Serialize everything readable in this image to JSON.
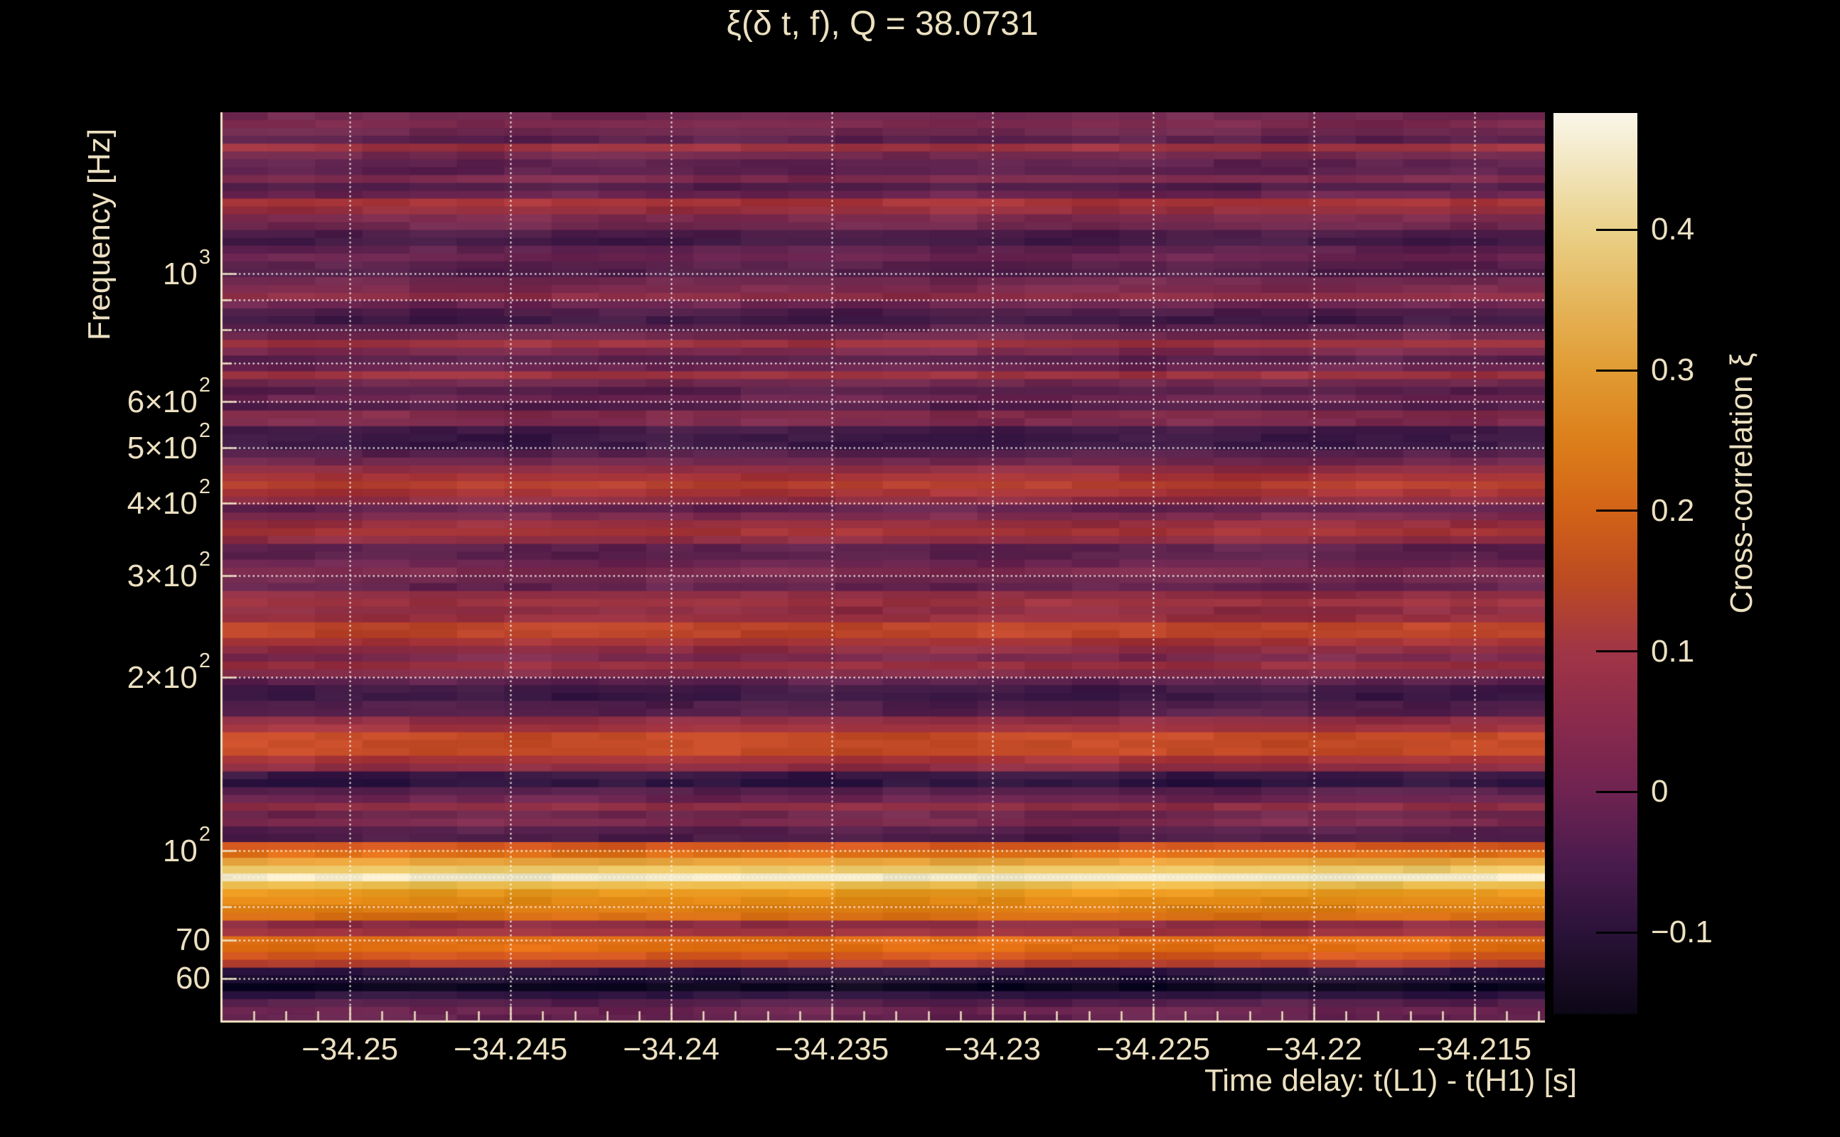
{
  "figure": {
    "background": "#000000",
    "text_color": "#ece0c1",
    "grid_color": "#fffaf0",
    "axis_color": "#ece0c1"
  },
  "title": {
    "text": "ξ(δ t, f), Q = 38.0731"
  },
  "x_axis": {
    "label": "Time delay: t(L1) - t(H1) [s]",
    "range": [
      -34.25403,
      -34.21281
    ],
    "major_ticks": [
      {
        "v": -34.25,
        "label": "−34.25"
      },
      {
        "v": -34.245,
        "label": "−34.245"
      },
      {
        "v": -34.24,
        "label": "−34.24"
      },
      {
        "v": -34.235,
        "label": "−34.235"
      },
      {
        "v": -34.23,
        "label": "−34.23"
      },
      {
        "v": -34.225,
        "label": "−34.225"
      },
      {
        "v": -34.22,
        "label": "−34.22"
      },
      {
        "v": -34.215,
        "label": "−34.215"
      }
    ],
    "minor_tick_step": 0.001,
    "minor_tick_start": -34.253,
    "minor_tick_count": 41
  },
  "y_axis": {
    "label": "Frequency [Hz]",
    "scale": "log",
    "range_hz": [
      50.36,
      1904
    ],
    "labeled_ticks": [
      {
        "v": 1000,
        "m": "10",
        "s": "3"
      },
      {
        "v": 600,
        "m": "6×10",
        "s": "2"
      },
      {
        "v": 500,
        "m": "5×10",
        "s": "2"
      },
      {
        "v": 400,
        "m": "4×10",
        "s": "2"
      },
      {
        "v": 300,
        "m": "3×10",
        "s": "2"
      },
      {
        "v": 200,
        "m": "2×10",
        "s": "2"
      },
      {
        "v": 100,
        "m": "10",
        "s": "2"
      },
      {
        "v": 70,
        "m": "70",
        "s": ""
      },
      {
        "v": 60,
        "m": "60",
        "s": ""
      }
    ],
    "gridline_values": [
      1000,
      900,
      800,
      700,
      600,
      500,
      400,
      300,
      200,
      100,
      90,
      80,
      70,
      60
    ]
  },
  "colorbar": {
    "label": "Cross-correlation ξ",
    "range": [
      -0.158,
      0.483
    ],
    "ticks": [
      {
        "v": 0.4,
        "label": "0.4"
      },
      {
        "v": 0.3,
        "label": "0.3"
      },
      {
        "v": 0.2,
        "label": "0.2"
      },
      {
        "v": 0.1,
        "label": "0.1"
      },
      {
        "v": 0.0,
        "label": "0"
      },
      {
        "v": -0.1,
        "label": "−0.1"
      }
    ],
    "stops": [
      {
        "v": 0.483,
        "c": "#faf5e9"
      },
      {
        "v": 0.45,
        "c": "#f3e8c4"
      },
      {
        "v": 0.4,
        "c": "#ead189"
      },
      {
        "v": 0.35,
        "c": "#e5b65c"
      },
      {
        "v": 0.3,
        "c": "#e19b33"
      },
      {
        "v": 0.25,
        "c": "#dc7f1b"
      },
      {
        "v": 0.2,
        "c": "#d26317"
      },
      {
        "v": 0.15,
        "c": "#bc4a22"
      },
      {
        "v": 0.1,
        "c": "#a03546"
      },
      {
        "v": 0.05,
        "c": "#8a2a4c"
      },
      {
        "v": 0.0,
        "c": "#6f2351"
      },
      {
        "v": -0.05,
        "c": "#4a1b4d"
      },
      {
        "v": -0.1,
        "c": "#2a1238"
      },
      {
        "v": -0.158,
        "c": "#0c0716"
      }
    ]
  },
  "chart_data": {
    "type": "heatmap",
    "title": "ξ(δ t, f), Q = 38.0731",
    "xlabel": "Time delay: t(L1) - t(H1) [s]",
    "ylabel": "Frequency [Hz]",
    "x_range_s": [
      -34.25403,
      -34.21281
    ],
    "y_range_hz": [
      50.36,
      1904
    ],
    "y_scale": "log",
    "value_range_xi": [
      -0.158,
      0.483
    ],
    "grid": "dotted-white-at-ticks",
    "legend": "colorbar-right",
    "structure": "horizontal log-spaced frequency rows, near-constant along time axis",
    "bright_bands": [
      {
        "freq_hz": 87,
        "xi_approx": 0.47,
        "note": "brightest cream band"
      },
      {
        "freq_hz": 93,
        "xi_approx": 0.28,
        "note": "orange band above cream line"
      },
      {
        "freq_hz": 78,
        "xi_approx": 0.25,
        "note": "orange band below cream line"
      },
      {
        "freq_hz": 143,
        "xi_approx": 0.17,
        "note": "orange-red band"
      },
      {
        "freq_hz": 218,
        "xi_approx": 0.13,
        "note": "red band above 2×10²"
      },
      {
        "freq_hz": 420,
        "xi_approx": 0.12,
        "note": "red band near 4×10²"
      },
      {
        "freq_hz": 62,
        "xi_approx": -0.13,
        "note": "darkest band near 60 Hz"
      }
    ],
    "row_colors_top_to_bottom": [
      "#722a50",
      "#7c2b4e",
      "#6e294f",
      "#5a214c",
      "#9c3340",
      "#732a4e",
      "#602350",
      "#5e224e",
      "#7c2b4e",
      "#521f4a",
      "#6b2550",
      "#a63438",
      "#96303f",
      "#7c2b4e",
      "#70294e",
      "#4c1d48",
      "#431b46",
      "#5e224e",
      "#6b2550",
      "#58214b",
      "#4f1e49",
      "#70294e",
      "#7c2b4e",
      "#8c2d46",
      "#6b2550",
      "#4c1d48",
      "#3f1a45",
      "#58214b",
      "#70294e",
      "#9c3340",
      "#7c2b4e",
      "#58214b",
      "#6b2550",
      "#9c3340",
      "#70294e",
      "#58214b",
      "#6b2550",
      "#521f4a",
      "#822c4a",
      "#7c2b4e",
      "#421b46",
      "#3a1844",
      "#3a1844",
      "#55204b",
      "#70294e",
      "#8e2e44",
      "#a63438",
      "#b5402f",
      "#a63438",
      "#8e2e44",
      "#62234e",
      "#7c2b4e",
      "#962f3f",
      "#a43437",
      "#8e2e44",
      "#5e224e",
      "#5a214c",
      "#6b2550",
      "#7c2b4e",
      "#70294e",
      "#62234e",
      "#8e2e44",
      "#9c3340",
      "#8e2e44",
      "#962f3f",
      "#bc452a",
      "#bc452a",
      "#a43437",
      "#8e2e44",
      "#7c2b4e",
      "#962f3f",
      "#822c4a",
      "#5e224e",
      "#421b46",
      "#3a1844",
      "#4c1d48",
      "#55204b",
      "#8e2e44",
      "#a03440",
      "#c44b27",
      "#c44b27",
      "#c44b27",
      "#a63438",
      "#8e2e44",
      "#3a1844",
      "#2e1540",
      "#55204b",
      "#6b2550",
      "#8e2e44",
      "#70294e",
      "#7c2b4e",
      "#55204b",
      "#4c1d48",
      "#d4581f",
      "#e07017",
      "#e8a33c",
      "#ecc96a",
      "#f2e9c8",
      "#eabc4e",
      "#e8991f",
      "#e08814",
      "#dc7d12",
      "#d96f15",
      "#8e2e44",
      "#a03440",
      "#e07017",
      "#df6d10",
      "#d4581f",
      "#b5402f",
      "#2e1540",
      "#1f1033",
      "#0e0820",
      "#2e1540",
      "#55204b",
      "#6b2550",
      "#62234e"
    ]
  }
}
